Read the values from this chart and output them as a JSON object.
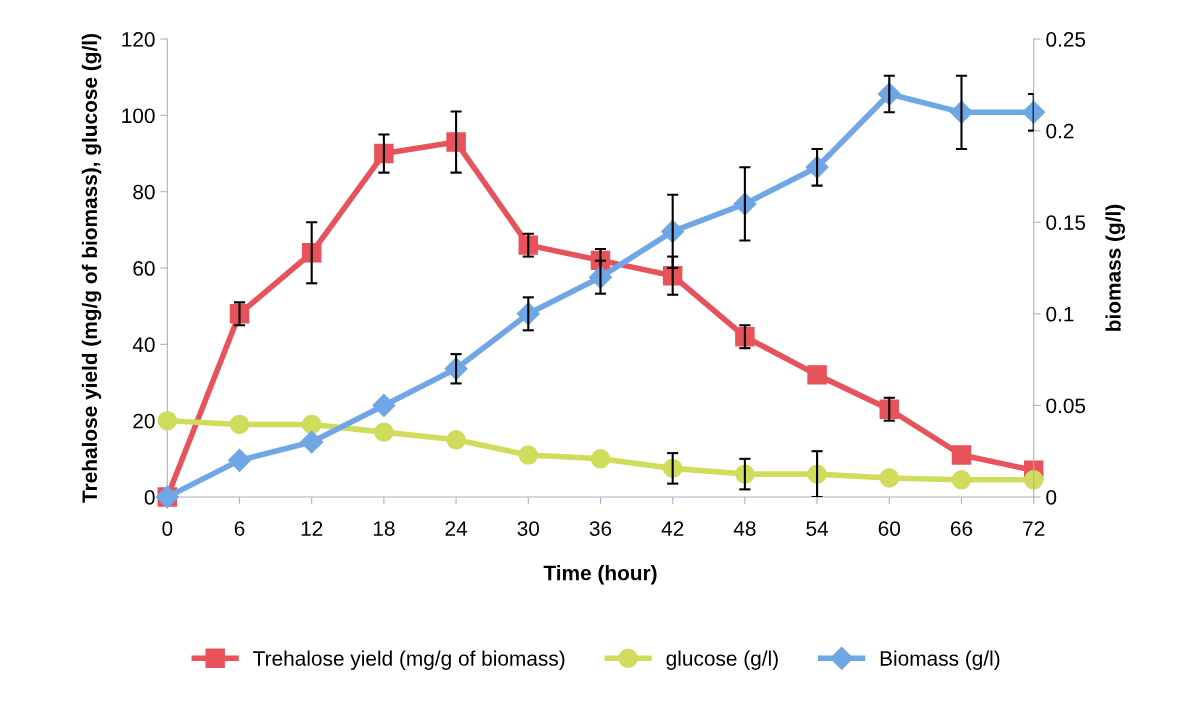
{
  "chart_data": {
    "type": "line",
    "xlabel": "Time (hour)",
    "ylabel": "Trehalose yield (mg/g of biomass), glucose (g/l)",
    "y2label": "biomass (g/l)",
    "x": [
      0,
      6,
      12,
      18,
      24,
      30,
      36,
      42,
      48,
      54,
      60,
      66,
      72
    ],
    "xlim": [
      0,
      72
    ],
    "xticks": [
      0,
      6,
      12,
      18,
      24,
      30,
      36,
      42,
      48,
      54,
      60,
      66,
      72
    ],
    "ylim": [
      0,
      120
    ],
    "yticks": [
      0,
      20,
      40,
      60,
      80,
      100,
      120
    ],
    "y2lim": [
      0,
      0.25
    ],
    "y2ticks": [
      0,
      0.05,
      0.1,
      0.15,
      0.2,
      0.25
    ],
    "grid": false,
    "legend": "bottom",
    "series": [
      {
        "name": "Trehalose yield (mg/g of biomass)",
        "color": "#e8525a",
        "marker": "square",
        "values": [
          0,
          48,
          64,
          90,
          93,
          66,
          62,
          58,
          42,
          32,
          23,
          11,
          7
        ],
        "errors": [
          null,
          3,
          8,
          5,
          8,
          3,
          3,
          5,
          3,
          null,
          3,
          null,
          null
        ]
      },
      {
        "name": "glucose (g/l)",
        "color": "#cfdc5c",
        "marker": "circle",
        "values": [
          20,
          19,
          19,
          17,
          15,
          11,
          10,
          7.5,
          6,
          6,
          5,
          4.5,
          4.5
        ],
        "errors": [
          null,
          null,
          null,
          null,
          null,
          null,
          null,
          4,
          4,
          6,
          null,
          null,
          null
        ]
      },
      {
        "name": "Biomass (g/l)",
        "color": "#6fa6e6",
        "marker": "diamond",
        "axis": "y2",
        "values": [
          0,
          0.02,
          0.03,
          0.05,
          0.07,
          0.1,
          0.12,
          0.145,
          0.16,
          0.18,
          0.22,
          0.21,
          0.21
        ],
        "errors": [
          null,
          null,
          null,
          null,
          0.008,
          0.009,
          0.009,
          0.02,
          0.02,
          0.01,
          0.01,
          0.02,
          0.01
        ]
      }
    ]
  }
}
